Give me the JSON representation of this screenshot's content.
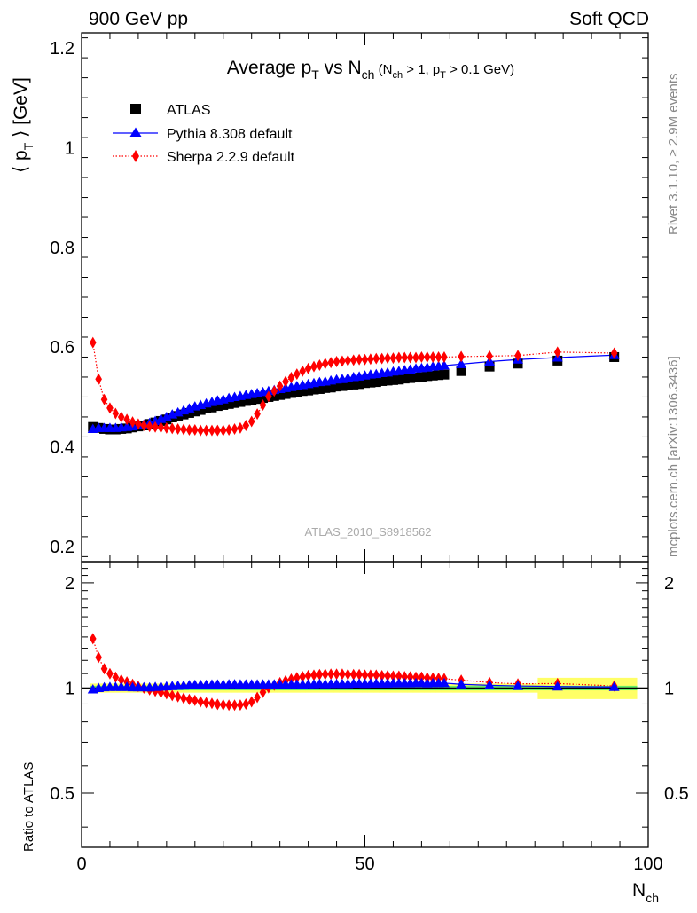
{
  "header": {
    "left": "900 GeV pp",
    "right": "Soft QCD"
  },
  "side_text": {
    "rivet": "Rivet 3.1.10, ≥ 2.9M events",
    "mcplots": "mcplots.cern.ch [arXiv:1306.3436]"
  },
  "watermark": "ATLAS_2010_S8918562",
  "colors": {
    "atlas": "#000000",
    "pythia": "#0000ff",
    "sherpa": "#ff0000",
    "band_inner": "#66ee66",
    "band_outer": "#ffff66"
  },
  "chart_data": [
    {
      "type": "scatter",
      "title": {
        "main": "Average p",
        "main_sub": "T",
        "vs": " vs N",
        "vs_sub": "ch",
        "cut_open": " (N",
        "cut_sub1": "ch",
        "cut_mid": " > 1, p",
        "cut_sub2": "T",
        "cut_close": " > 0.1 GeV)"
      },
      "ylabel": {
        "open": "⟨ p",
        "sub": "T",
        "close": " ⟩  [GeV]"
      },
      "xlim": [
        0,
        100
      ],
      "ylim": [
        0.17,
        1.23
      ],
      "yticks": [
        0.2,
        0.4,
        0.6,
        0.8,
        1,
        1.2
      ],
      "legend": {
        "placement": "top-left",
        "entries": [
          "ATLAS",
          "Pythia 8.308 default",
          "Sherpa 2.2.9 default"
        ]
      },
      "x": [
        2,
        3,
        4,
        5,
        6,
        7,
        8,
        9,
        10,
        11,
        12,
        13,
        14,
        15,
        16,
        17,
        18,
        19,
        20,
        21,
        22,
        23,
        24,
        25,
        26,
        27,
        28,
        29,
        30,
        31,
        32,
        33,
        34,
        35,
        36,
        37,
        38,
        39,
        40,
        41,
        42,
        43,
        44,
        45,
        46,
        47,
        48,
        49,
        50,
        51,
        52,
        53,
        54,
        55,
        56,
        57,
        58,
        59,
        60,
        61,
        62,
        63,
        64,
        67,
        72,
        77,
        84,
        94
      ],
      "series": [
        {
          "name": "ATLAS",
          "values": [
            0.44,
            0.438,
            0.436,
            0.435,
            0.435,
            0.436,
            0.437,
            0.439,
            0.441,
            0.443,
            0.446,
            0.449,
            0.452,
            0.455,
            0.459,
            0.462,
            0.465,
            0.468,
            0.471,
            0.474,
            0.477,
            0.479,
            0.482,
            0.484,
            0.486,
            0.488,
            0.49,
            0.492,
            0.494,
            0.496,
            0.498,
            0.5,
            0.502,
            0.504,
            0.506,
            0.508,
            0.51,
            0.512,
            0.513,
            0.515,
            0.516,
            0.518,
            0.519,
            0.521,
            0.522,
            0.524,
            0.525,
            0.526,
            0.528,
            0.529,
            0.53,
            0.532,
            0.533,
            0.534,
            0.535,
            0.537,
            0.538,
            0.539,
            0.54,
            0.542,
            0.543,
            0.544,
            0.545,
            0.552,
            0.561,
            0.567,
            0.573,
            0.58
          ]
        },
        {
          "name": "Pythia 8.308 default",
          "values": [
            0.436,
            0.438,
            0.438,
            0.438,
            0.438,
            0.439,
            0.44,
            0.441,
            0.443,
            0.445,
            0.448,
            0.452,
            0.456,
            0.46,
            0.465,
            0.469,
            0.473,
            0.477,
            0.481,
            0.484,
            0.487,
            0.49,
            0.493,
            0.495,
            0.498,
            0.5,
            0.502,
            0.504,
            0.506,
            0.508,
            0.51,
            0.512,
            0.514,
            0.516,
            0.518,
            0.52,
            0.522,
            0.524,
            0.526,
            0.528,
            0.53,
            0.531,
            0.533,
            0.535,
            0.536,
            0.538,
            0.54,
            0.541,
            0.543,
            0.545,
            0.546,
            0.548,
            0.549,
            0.551,
            0.552,
            0.554,
            0.555,
            0.557,
            0.558,
            0.559,
            0.561,
            0.562,
            0.563,
            0.566,
            0.571,
            0.575,
            0.579,
            0.584
          ]
        },
        {
          "name": "Sherpa 2.2.9 default",
          "values": [
            0.609,
            0.536,
            0.495,
            0.478,
            0.467,
            0.46,
            0.455,
            0.45,
            0.446,
            0.443,
            0.441,
            0.44,
            0.439,
            0.438,
            0.437,
            0.436,
            0.435,
            0.434,
            0.434,
            0.433,
            0.433,
            0.433,
            0.433,
            0.433,
            0.434,
            0.436,
            0.438,
            0.443,
            0.451,
            0.466,
            0.484,
            0.501,
            0.512,
            0.522,
            0.531,
            0.539,
            0.546,
            0.552,
            0.557,
            0.561,
            0.564,
            0.567,
            0.569,
            0.571,
            0.572,
            0.573,
            0.574,
            0.575,
            0.575,
            0.576,
            0.577,
            0.577,
            0.578,
            0.578,
            0.579,
            0.579,
            0.579,
            0.579,
            0.58,
            0.58,
            0.58,
            0.58,
            0.58,
            0.581,
            0.582,
            0.583,
            0.59,
            0.588
          ]
        }
      ]
    },
    {
      "type": "scatter",
      "ylabel": "Ratio to ATLAS",
      "xlabel": {
        "main": "N",
        "sub": "ch"
      },
      "xlim": [
        0,
        100
      ],
      "ylim": [
        0.35,
        2.3
      ],
      "yticks": [
        0.5,
        1,
        2
      ],
      "ytick_labels": [
        "0.5",
        "1",
        "2"
      ],
      "xticks": [
        0,
        50,
        100
      ],
      "x": [
        2,
        3,
        4,
        5,
        6,
        7,
        8,
        9,
        10,
        11,
        12,
        13,
        14,
        15,
        16,
        17,
        18,
        19,
        20,
        21,
        22,
        23,
        24,
        25,
        26,
        27,
        28,
        29,
        30,
        31,
        32,
        33,
        34,
        35,
        36,
        37,
        38,
        39,
        40,
        41,
        42,
        43,
        44,
        45,
        46,
        47,
        48,
        49,
        50,
        51,
        52,
        53,
        54,
        55,
        56,
        57,
        58,
        59,
        60,
        61,
        62,
        63,
        64,
        67,
        72,
        77,
        84,
        94
      ],
      "band_inner": [
        0.985,
        1.015
      ],
      "band_outer": [
        0.97,
        1.03
      ],
      "band_outer_tail": [
        0.93,
        1.07
      ],
      "series": [
        {
          "name": "Pythia 8.308 default",
          "values": [
            0.991,
            1.0,
            1.005,
            1.007,
            1.007,
            1.007,
            1.007,
            1.005,
            1.005,
            1.005,
            1.004,
            1.007,
            1.009,
            1.011,
            1.013,
            1.015,
            1.017,
            1.019,
            1.021,
            1.021,
            1.021,
            1.023,
            1.023,
            1.023,
            1.025,
            1.025,
            1.024,
            1.024,
            1.024,
            1.024,
            1.024,
            1.024,
            1.024,
            1.024,
            1.024,
            1.024,
            1.024,
            1.023,
            1.025,
            1.025,
            1.027,
            1.025,
            1.027,
            1.027,
            1.027,
            1.027,
            1.029,
            1.029,
            1.028,
            1.03,
            1.03,
            1.03,
            1.03,
            1.032,
            1.032,
            1.032,
            1.032,
            1.033,
            1.033,
            1.031,
            1.033,
            1.033,
            1.033,
            1.025,
            1.018,
            1.014,
            1.01,
            1.007
          ]
        },
        {
          "name": "Sherpa 2.2.9 default",
          "values": [
            1.384,
            1.224,
            1.135,
            1.099,
            1.074,
            1.055,
            1.041,
            1.025,
            1.011,
            1.0,
            0.989,
            0.98,
            0.971,
            0.963,
            0.952,
            0.944,
            0.935,
            0.927,
            0.922,
            0.914,
            0.908,
            0.904,
            0.898,
            0.895,
            0.893,
            0.893,
            0.894,
            0.9,
            0.913,
            0.94,
            0.972,
            1.002,
            1.02,
            1.036,
            1.049,
            1.061,
            1.071,
            1.078,
            1.086,
            1.089,
            1.093,
            1.095,
            1.096,
            1.096,
            1.096,
            1.094,
            1.093,
            1.093,
            1.089,
            1.089,
            1.089,
            1.085,
            1.084,
            1.082,
            1.082,
            1.078,
            1.076,
            1.074,
            1.074,
            1.07,
            1.068,
            1.066,
            1.064,
            1.053,
            1.037,
            1.028,
            1.03,
            1.014
          ]
        }
      ]
    }
  ]
}
